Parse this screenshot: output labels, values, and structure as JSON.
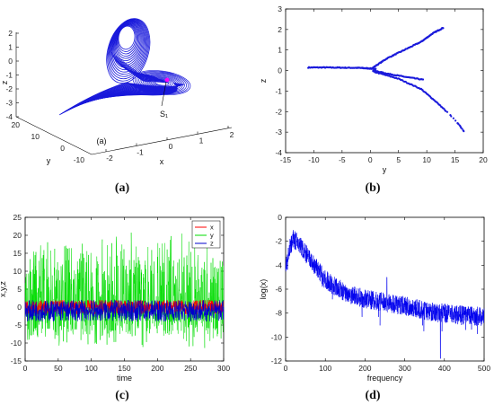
{
  "chart_data": [
    {
      "panel": "a",
      "caption": "(a)",
      "type": "line",
      "kind": "3d-attractor",
      "axes": {
        "xlabel": "x",
        "ylabel": "y",
        "zlabel": "z"
      },
      "x_ticks": [
        "-2",
        "-1",
        "0",
        "1",
        "2"
      ],
      "y_ticks": [
        "-10",
        "0",
        "10",
        "20"
      ],
      "z_ticks": [
        "-4",
        "-3",
        "-2",
        "-1",
        "0",
        "1",
        "2"
      ],
      "annotations": [
        "(a)",
        "S₁"
      ],
      "color": "#1a1adb"
    },
    {
      "panel": "b",
      "caption": "(b)",
      "type": "scatter",
      "xlabel": "y",
      "ylabel": "z",
      "xlim": [
        -15,
        20
      ],
      "ylim": [
        -4,
        3
      ],
      "x_ticks": [
        "-15",
        "-10",
        "-5",
        "0",
        "5",
        "10",
        "15",
        "20"
      ],
      "y_ticks": [
        "-4",
        "-3",
        "-2",
        "-1",
        "0",
        "1",
        "2",
        "3"
      ],
      "branches": [
        {
          "x": [
            -11,
            -8,
            -5,
            -2,
            0,
            1
          ],
          "y": [
            0.15,
            0.15,
            0.14,
            0.13,
            0.1,
            0.08
          ]
        },
        {
          "x": [
            0.5,
            3,
            6,
            9,
            11,
            13
          ],
          "y": [
            0.15,
            0.6,
            1.0,
            1.4,
            1.8,
            2.1
          ]
        },
        {
          "x": [
            0.5,
            3,
            6,
            9.5
          ],
          "y": [
            0.0,
            -0.15,
            -0.3,
            -0.45
          ]
        },
        {
          "x": [
            0.5,
            5,
            9,
            12,
            15,
            17
          ],
          "y": [
            -0.05,
            -0.4,
            -0.9,
            -1.6,
            -2.4,
            -3.1
          ]
        }
      ],
      "color": "#1a1adb"
    },
    {
      "panel": "c",
      "caption": "(c)",
      "type": "line",
      "xlabel": "time",
      "ylabel": "x,y,z",
      "xlim": [
        0,
        300
      ],
      "ylim": [
        -15,
        25
      ],
      "x_ticks": [
        "0",
        "50",
        "100",
        "150",
        "200",
        "250",
        "300"
      ],
      "y_ticks": [
        "-15",
        "-10",
        "-5",
        "0",
        "5",
        "10",
        "15",
        "20",
        "25"
      ],
      "series": [
        {
          "name": "x",
          "color": "#ff0000",
          "range": [
            -2,
            2
          ]
        },
        {
          "name": "y",
          "color": "#00dd00",
          "range": [
            -12,
            22
          ]
        },
        {
          "name": "z",
          "color": "#0000cc",
          "range": [
            -4,
            2
          ]
        }
      ],
      "legend": "top-right"
    },
    {
      "panel": "d",
      "caption": "(d)",
      "type": "line",
      "xlabel": "frequency",
      "ylabel": "log(x)",
      "xlim": [
        0,
        500
      ],
      "ylim": [
        -12,
        0
      ],
      "x_ticks": [
        "0",
        "100",
        "200",
        "300",
        "400",
        "500"
      ],
      "y_ticks": [
        "-12",
        "-10",
        "-8",
        "-6",
        "-4",
        "-2",
        "0"
      ],
      "envelope": {
        "frequency": [
          0,
          10,
          20,
          40,
          60,
          100,
          150,
          200,
          250,
          300,
          350,
          400,
          450,
          500
        ],
        "log_x": [
          -4.5,
          -2.5,
          -1.8,
          -2.5,
          -3.5,
          -5.2,
          -6.3,
          -6.8,
          -7.1,
          -7.4,
          -7.8,
          -8.0,
          -8.2,
          -8.3
        ]
      },
      "color": "#0000ee"
    }
  ]
}
